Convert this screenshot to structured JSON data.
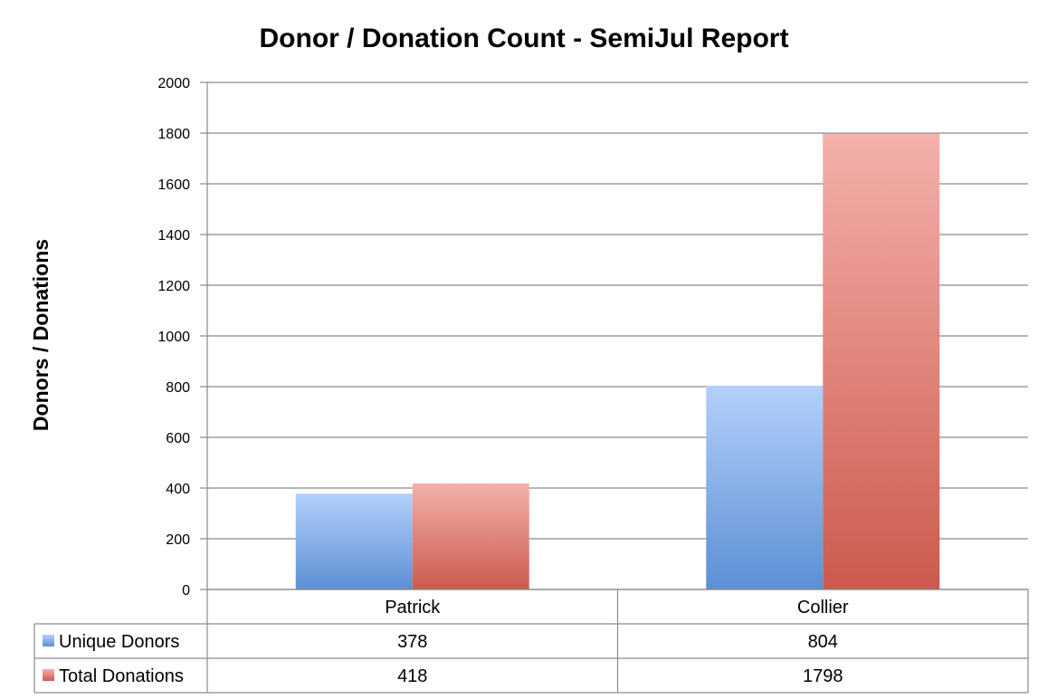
{
  "chart_data": {
    "type": "bar",
    "title": "Donor / Donation Count - SemiJul Report",
    "xlabel": "",
    "ylabel": "Donors / Donations",
    "ylim": [
      0,
      2000
    ],
    "yticks": [
      0,
      200,
      400,
      600,
      800,
      1000,
      1200,
      1400,
      1600,
      1800,
      2000
    ],
    "grid": true,
    "legend": "data-table",
    "categories": [
      "Patrick",
      "Collier"
    ],
    "series": [
      {
        "name": "Unique Donors",
        "values": [
          378,
          804
        ],
        "color_top": "#b4d0fb",
        "color_bottom": "#5b8fd4"
      },
      {
        "name": "Total Donations",
        "values": [
          418,
          1798
        ],
        "color_top": "#f4b0aa",
        "color_bottom": "#cc5a4e"
      }
    ]
  }
}
